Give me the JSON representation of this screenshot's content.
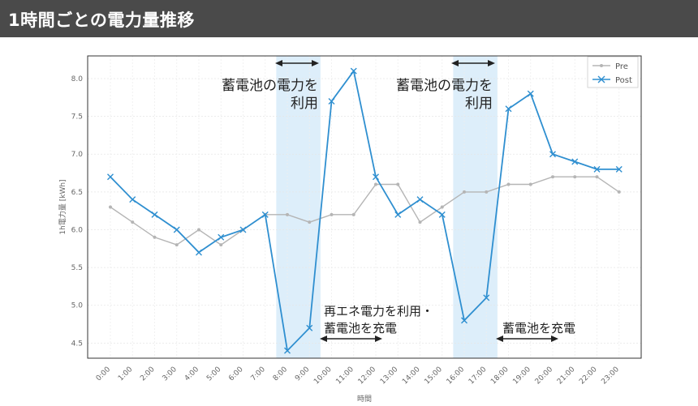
{
  "header": {
    "title": "1時間ごとの電力量推移"
  },
  "colors": {
    "pre": "#b5b5b5",
    "post": "#2f8fd0",
    "band": "#ddeefa",
    "header_bg": "#4a4a4a"
  },
  "annotations": {
    "use_storage_1": [
      "蓄電池の電力を",
      "利用"
    ],
    "use_storage_2": [
      "蓄電池の電力を",
      "利用"
    ],
    "renewable_charge": [
      "再エネ電力を利用・",
      "蓄電池を充電"
    ],
    "charge": [
      "蓄電池を充電"
    ]
  },
  "chart_data": {
    "type": "line",
    "title": "",
    "xlabel": "時間",
    "ylabel": "1h電力量 [kWh]",
    "ylim": [
      4.3,
      8.3
    ],
    "yticks": [
      4.5,
      5.0,
      5.5,
      6.0,
      6.5,
      7.0,
      7.5,
      8.0
    ],
    "ytick_labels": [
      "4.5",
      "5.0",
      "5.5",
      "6.0",
      "6.5",
      "7.0",
      "7.5",
      "8.0"
    ],
    "grid": true,
    "legend_position": "top-right",
    "categories": [
      "0:00",
      "1:00",
      "2:00",
      "3:00",
      "4:00",
      "5:00",
      "6:00",
      "7:00",
      "8:00",
      "9:00",
      "10:00",
      "11:00",
      "12:00",
      "13:00",
      "14:00",
      "15:00",
      "16:00",
      "17:00",
      "18:00",
      "19:00",
      "20:00",
      "21:00",
      "22:00",
      "23:00"
    ],
    "series": [
      {
        "name": "Pre",
        "marker": "dot",
        "values": [
          6.3,
          6.1,
          5.9,
          5.8,
          6.0,
          5.8,
          6.0,
          6.2,
          6.2,
          6.1,
          6.2,
          6.2,
          6.6,
          6.6,
          6.1,
          6.3,
          6.5,
          6.5,
          6.6,
          6.6,
          6.7,
          6.7,
          6.7,
          6.5
        ]
      },
      {
        "name": "Post",
        "marker": "x",
        "values": [
          6.7,
          6.4,
          6.2,
          6.0,
          5.7,
          5.9,
          6.0,
          6.2,
          4.4,
          4.7,
          7.7,
          8.1,
          6.7,
          6.2,
          6.4,
          6.2,
          4.8,
          5.1,
          7.6,
          7.8,
          7.0,
          6.9,
          6.8,
          6.8
        ]
      }
    ],
    "shaded_ranges": [
      [
        7.5,
        9.5
      ],
      [
        15.5,
        17.5
      ]
    ]
  }
}
